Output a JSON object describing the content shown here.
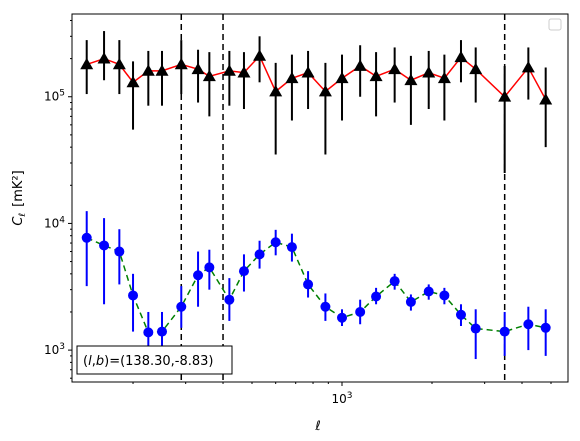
{
  "chart_data": {
    "type": "scatter",
    "title": "",
    "xlabel": "ℓ",
    "ylabel_main": "C",
    "ylabel_sub": "ℓ",
    "ylabel_unit": "[mK²]",
    "x_scale": "log",
    "y_scale": "log",
    "xlim": [
      125,
      5700
    ],
    "ylim": [
      560,
      450000
    ],
    "x_tick_labels": [
      {
        "value": 1000,
        "base": "10",
        "exp": "3"
      }
    ],
    "y_tick_labels": [
      {
        "value": 1000,
        "base": "10",
        "exp": "3"
      },
      {
        "value": 10000,
        "base": "10",
        "exp": "4"
      },
      {
        "value": 100000,
        "base": "10",
        "exp": "5"
      }
    ],
    "legend": {
      "placement": "top-right",
      "entries": []
    },
    "annotation": "(l,b)=(138.30,-8.83)",
    "annotation_parts": {
      "l": "l",
      "b": "b",
      "comma": ",",
      "open": "(",
      "close": ")",
      "value": "=(138.30,-8.83)"
    },
    "vlines": [
      290,
      400,
      3500
    ],
    "series": [
      {
        "marker": "triangle",
        "line": "solid",
        "color": "#ff0000",
        "marker_color": "#000000",
        "x": [
          140,
          160,
          180,
          200,
          225,
          250,
          290,
          330,
          360,
          420,
          470,
          530,
          600,
          680,
          770,
          880,
          1000,
          1150,
          1300,
          1500,
          1700,
          1950,
          2200,
          2500,
          2800,
          3500,
          4200,
          4800
        ],
        "y": [
          180000,
          200000,
          180000,
          130000,
          160000,
          160000,
          180000,
          165000,
          145000,
          160000,
          155000,
          210000,
          110000,
          140000,
          155000,
          110000,
          140000,
          175000,
          145000,
          165000,
          135000,
          155000,
          140000,
          205000,
          165000,
          100000,
          170000,
          95000
        ],
        "err_low": [
          105000,
          135000,
          105000,
          55000,
          85000,
          85000,
          105000,
          90000,
          70000,
          85000,
          80000,
          130000,
          35000,
          65000,
          80000,
          35000,
          65000,
          100000,
          70000,
          90000,
          60000,
          80000,
          65000,
          130000,
          90000,
          25000,
          95000,
          40000
        ],
        "err_high": [
          280000,
          330000,
          280000,
          190000,
          230000,
          230000,
          280000,
          235000,
          225000,
          230000,
          225000,
          300000,
          185000,
          215000,
          230000,
          185000,
          215000,
          255000,
          225000,
          245000,
          210000,
          230000,
          215000,
          280000,
          245000,
          175000,
          245000,
          170000
        ]
      },
      {
        "marker": "circle",
        "line": "dashed",
        "color": "#008000",
        "marker_color": "#0000ff",
        "x": [
          140,
          160,
          180,
          200,
          225,
          250,
          290,
          330,
          360,
          420,
          470,
          530,
          600,
          680,
          770,
          880,
          1000,
          1150,
          1300,
          1500,
          1700,
          1950,
          2200,
          2500,
          2800,
          3500,
          4200,
          4800
        ],
        "y": [
          7700,
          6700,
          6000,
          2700,
          1380,
          1400,
          2200,
          3900,
          4500,
          2500,
          4200,
          5700,
          7100,
          6500,
          3300,
          2200,
          1800,
          2000,
          2650,
          3500,
          2400,
          2900,
          2700,
          1900,
          1480,
          1400,
          1600,
          1500
        ],
        "err_low": [
          3200,
          2300,
          3300,
          1400,
          900,
          900,
          1500,
          2200,
          3000,
          1700,
          2900,
          4400,
          5600,
          5000,
          2600,
          1700,
          1550,
          1600,
          2300,
          3000,
          2050,
          2500,
          2300,
          1550,
          850,
          900,
          1000,
          900
        ],
        "err_high": [
          12500,
          11000,
          9000,
          4000,
          2000,
          2000,
          3200,
          6000,
          6200,
          3700,
          5700,
          7300,
          8900,
          8300,
          4200,
          2800,
          2100,
          2500,
          3100,
          4000,
          2750,
          3300,
          3100,
          2300,
          2100,
          2000,
          2200,
          2100
        ]
      }
    ]
  }
}
